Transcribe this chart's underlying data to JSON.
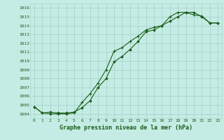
{
  "title": "Graphe pression niveau de la mer (hPa)",
  "bg_color": "#c5ece4",
  "grid_color": "#a8d4cc",
  "line_color": "#1a5c1a",
  "x_ticks": [
    0,
    1,
    2,
    3,
    4,
    5,
    6,
    7,
    8,
    9,
    10,
    11,
    12,
    13,
    14,
    15,
    16,
    17,
    18,
    19,
    20,
    21,
    22,
    23
  ],
  "ylim": [
    1003.5,
    1016.5
  ],
  "xlim": [
    -0.5,
    23.5
  ],
  "series1_x": [
    0,
    1,
    2,
    3,
    4,
    5,
    6,
    7,
    8,
    9,
    10,
    11,
    12,
    13,
    14,
    15,
    16,
    17,
    18,
    19,
    20,
    21,
    22,
    23
  ],
  "series1_y": [
    1004.8,
    1004.1,
    1004.0,
    1004.0,
    1004.0,
    1004.1,
    1005.3,
    1006.3,
    1007.5,
    1009.0,
    1011.1,
    1011.5,
    1012.2,
    1012.8,
    1013.5,
    1013.8,
    1014.0,
    1015.0,
    1015.5,
    1015.5,
    1015.2,
    1015.1,
    1014.3,
    1014.3
  ],
  "series2_x": [
    0,
    1,
    2,
    3,
    4,
    5,
    6,
    7,
    8,
    9,
    10,
    11,
    12,
    13,
    14,
    15,
    16,
    17,
    18,
    19,
    20,
    21,
    22,
    23
  ],
  "series2_y": [
    1004.8,
    1004.1,
    1004.2,
    1004.1,
    1004.1,
    1004.2,
    1004.7,
    1005.5,
    1007.0,
    1008.0,
    1009.9,
    1010.5,
    1011.3,
    1012.2,
    1013.3,
    1013.5,
    1014.0,
    1014.5,
    1015.0,
    1015.5,
    1015.5,
    1015.0,
    1014.3,
    1014.3
  ],
  "yticks": [
    1004,
    1005,
    1006,
    1007,
    1008,
    1009,
    1010,
    1011,
    1012,
    1013,
    1014,
    1015,
    1016
  ],
  "ylabel_fontsize": 4.5,
  "xlabel_fontsize": 4.5,
  "title_fontsize": 6.0
}
